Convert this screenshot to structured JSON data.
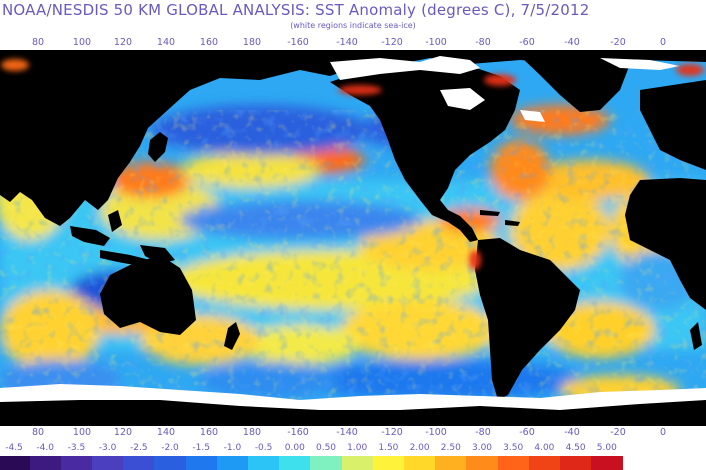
{
  "title": "NOAA/NESDIS 50 KM GLOBAL ANALYSIS: SST Anomaly (degrees C), 7/5/2012",
  "subtitle": "(white regions indicate sea-ice)",
  "lon_ticks_top": [
    "80",
    "100",
    "120",
    "140",
    "160",
    "180",
    "-160",
    "-140",
    "-120",
    "-100",
    "-80",
    "-60",
    "-40",
    "-20",
    "0"
  ],
  "lon_ticks_bottom": [
    "80",
    "100",
    "120",
    "140",
    "160",
    "180",
    "-160",
    "-140",
    "-120",
    "-100",
    "-80",
    "-60",
    "-40",
    "-20",
    "0"
  ],
  "scale_labels": [
    "-4.5",
    "-4.0",
    "-3.5",
    "-3.0",
    "-2.5",
    "-2.0",
    "-1.5",
    "-1.0",
    "-0.5",
    "0.00",
    "0.50",
    "1.00",
    "1.50",
    "2.00",
    "2.50",
    "3.00",
    "3.50",
    "4.00",
    "4.50",
    "5.00"
  ],
  "scale_colors": [
    "#2a0a55",
    "#3d1a80",
    "#4a2aa0",
    "#4b3fbf",
    "#3a4fd4",
    "#2a5fe0",
    "#1f78ee",
    "#1e9af5",
    "#2cc4f7",
    "#3ee0ee",
    "#7ff0c0",
    "#d9f06a",
    "#fff23a",
    "#ffd82a",
    "#ffb020",
    "#ff8c1a",
    "#ff6418",
    "#f04416",
    "#e02818",
    "#c81020"
  ],
  "colors": {
    "land": "#000000",
    "ice": "#ffffff",
    "text": "#6a5ac0"
  }
}
